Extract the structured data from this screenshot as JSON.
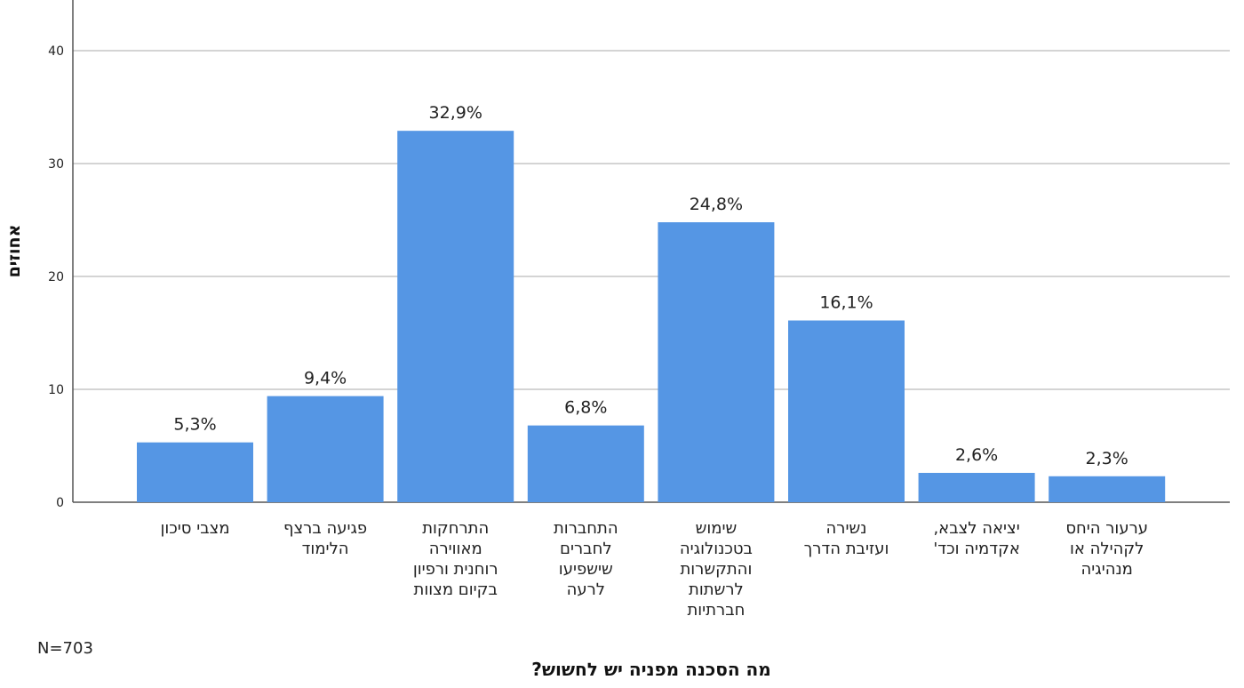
{
  "chart_data": {
    "type": "bar",
    "categories": [
      [
        "מצבי סיכון"
      ],
      [
        "פגיעה ברצף",
        "הלימוד"
      ],
      [
        "התרחקות",
        "מאווירה",
        "רוחנית ורפיון",
        "בקיום מצוות"
      ],
      [
        "התחברות",
        "לחברים",
        "שישפיעו",
        "לרעה"
      ],
      [
        "שימוש",
        "בטכנולוגיה",
        "והתקשרות",
        "לרשתות",
        "חברתיות"
      ],
      [
        "נשירה",
        "ועזיבת הדרך"
      ],
      [
        "יציאה לצבא,",
        "אקדמיה וכד'"
      ],
      [
        "ערעור היחס",
        "לקהילה או",
        "מנהיגיה"
      ]
    ],
    "values": [
      5.3,
      9.4,
      32.9,
      6.8,
      24.8,
      16.1,
      2.6,
      2.3
    ],
    "value_labels": [
      "5,3%",
      "9,4%",
      "32,9%",
      "6,8%",
      "24,8%",
      "16,1%",
      "2,6%",
      "2,3%"
    ],
    "ylabel": "אחוזים",
    "xlabel": "מה הסכנה מפניה יש לחשוש?",
    "yticks": [
      "0",
      "10",
      "20",
      "30",
      "40"
    ],
    "ylim": [
      0,
      40
    ],
    "grid": true,
    "note": "N=703",
    "colors": {
      "bar": "#5596e4",
      "grid": "#d4d4d4",
      "axis": "#555555"
    }
  }
}
